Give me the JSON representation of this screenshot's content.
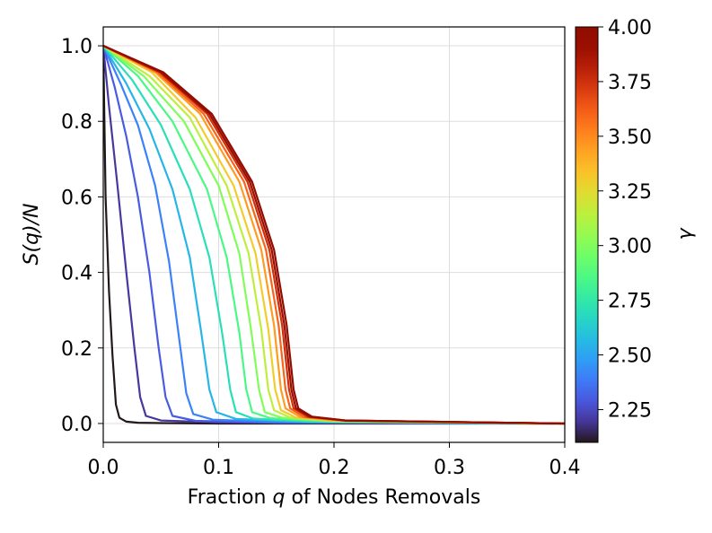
{
  "chart_data": {
    "type": "line",
    "xlabel_prefix": "Fraction ",
    "xlabel_var": "q",
    "xlabel_suffix": " of Nodes Removals",
    "ylabel": "S(q)/N",
    "xlim": [
      0,
      0.4
    ],
    "ylim": [
      -0.05,
      1.05
    ],
    "xticks": [
      0.0,
      0.1,
      0.2,
      0.3,
      0.4
    ],
    "xtick_labels": [
      "0.0",
      "0.1",
      "0.2",
      "0.3",
      "0.4"
    ],
    "yticks": [
      0.0,
      0.2,
      0.4,
      0.6,
      0.8,
      1.0
    ],
    "ytick_labels": [
      "0.0",
      "0.2",
      "0.4",
      "0.6",
      "0.8",
      "1.0"
    ],
    "grid": true,
    "colorbar": {
      "label": "γ",
      "range": [
        2.1,
        4.0
      ],
      "ticks": [
        2.25,
        2.5,
        2.75,
        3.0,
        3.25,
        3.5,
        3.75,
        4.0
      ],
      "tick_labels": [
        "2.25",
        "2.50",
        "2.75",
        "3.00",
        "3.25",
        "3.50",
        "3.75",
        "4.00"
      ],
      "colormap": "turbo"
    },
    "series": [
      {
        "gamma": 2.1,
        "x": [
          0,
          0.002,
          0.005,
          0.008,
          0.011,
          0.014,
          0.02,
          0.03,
          0.05,
          0.1,
          0.2,
          0.4
        ],
        "y": [
          1.0,
          0.6,
          0.35,
          0.18,
          0.05,
          0.015,
          0.005,
          0.002,
          0.001,
          0.0,
          0.0,
          0.0
        ]
      },
      {
        "gamma": 2.2,
        "x": [
          0,
          0.005,
          0.012,
          0.02,
          0.027,
          0.032,
          0.037,
          0.05,
          0.1,
          0.2,
          0.4
        ],
        "y": [
          1.0,
          0.84,
          0.64,
          0.4,
          0.2,
          0.07,
          0.02,
          0.008,
          0.003,
          0.001,
          0.0
        ]
      },
      {
        "gamma": 2.3,
        "x": [
          0,
          0.01,
          0.02,
          0.03,
          0.04,
          0.048,
          0.054,
          0.06,
          0.08,
          0.15,
          0.4
        ],
        "y": [
          1.0,
          0.89,
          0.76,
          0.6,
          0.4,
          0.2,
          0.07,
          0.02,
          0.007,
          0.002,
          0.0
        ]
      },
      {
        "gamma": 2.4,
        "x": [
          0,
          0.015,
          0.03,
          0.045,
          0.057,
          0.066,
          0.072,
          0.078,
          0.095,
          0.15,
          0.4
        ],
        "y": [
          1.0,
          0.9,
          0.79,
          0.63,
          0.43,
          0.22,
          0.08,
          0.025,
          0.01,
          0.004,
          0.0
        ]
      },
      {
        "gamma": 2.55,
        "x": [
          0,
          0.02,
          0.04,
          0.06,
          0.075,
          0.085,
          0.092,
          0.098,
          0.115,
          0.18,
          0.4
        ],
        "y": [
          1.0,
          0.9,
          0.78,
          0.62,
          0.44,
          0.24,
          0.09,
          0.03,
          0.012,
          0.004,
          0.0
        ]
      },
      {
        "gamma": 2.7,
        "x": [
          0,
          0.025,
          0.05,
          0.075,
          0.092,
          0.103,
          0.11,
          0.115,
          0.13,
          0.18,
          0.4
        ],
        "y": [
          1.0,
          0.91,
          0.79,
          0.62,
          0.44,
          0.24,
          0.09,
          0.03,
          0.013,
          0.005,
          0.0
        ]
      },
      {
        "gamma": 2.85,
        "x": [
          0,
          0.03,
          0.06,
          0.09,
          0.107,
          0.118,
          0.124,
          0.129,
          0.145,
          0.2,
          0.4
        ],
        "y": [
          1.0,
          0.92,
          0.8,
          0.62,
          0.44,
          0.24,
          0.09,
          0.03,
          0.014,
          0.005,
          0.0
        ]
      },
      {
        "gamma": 3.0,
        "x": [
          0,
          0.035,
          0.07,
          0.1,
          0.118,
          0.128,
          0.135,
          0.14,
          0.155,
          0.2,
          0.4
        ],
        "y": [
          1.0,
          0.92,
          0.8,
          0.63,
          0.45,
          0.25,
          0.09,
          0.03,
          0.015,
          0.006,
          0.0
        ]
      },
      {
        "gamma": 3.15,
        "x": [
          0,
          0.04,
          0.075,
          0.107,
          0.126,
          0.137,
          0.143,
          0.148,
          0.162,
          0.2,
          0.4
        ],
        "y": [
          1.0,
          0.92,
          0.81,
          0.63,
          0.45,
          0.25,
          0.09,
          0.035,
          0.016,
          0.007,
          0.0
        ]
      },
      {
        "gamma": 3.3,
        "x": [
          0,
          0.042,
          0.08,
          0.113,
          0.132,
          0.143,
          0.149,
          0.154,
          0.167,
          0.2,
          0.4
        ],
        "y": [
          1.0,
          0.93,
          0.81,
          0.63,
          0.45,
          0.25,
          0.09,
          0.035,
          0.016,
          0.007,
          0.0
        ]
      },
      {
        "gamma": 3.45,
        "x": [
          0,
          0.045,
          0.084,
          0.118,
          0.137,
          0.148,
          0.154,
          0.158,
          0.171,
          0.21,
          0.4
        ],
        "y": [
          1.0,
          0.93,
          0.82,
          0.64,
          0.46,
          0.26,
          0.09,
          0.04,
          0.017,
          0.007,
          0.0
        ]
      },
      {
        "gamma": 3.6,
        "x": [
          0,
          0.047,
          0.087,
          0.122,
          0.141,
          0.152,
          0.158,
          0.162,
          0.174,
          0.21,
          0.4
        ],
        "y": [
          1.0,
          0.93,
          0.82,
          0.64,
          0.46,
          0.26,
          0.09,
          0.04,
          0.017,
          0.007,
          0.0
        ]
      },
      {
        "gamma": 3.75,
        "x": [
          0,
          0.049,
          0.09,
          0.125,
          0.144,
          0.155,
          0.161,
          0.165,
          0.177,
          0.21,
          0.4
        ],
        "y": [
          1.0,
          0.93,
          0.82,
          0.64,
          0.46,
          0.26,
          0.09,
          0.04,
          0.018,
          0.008,
          0.0
        ]
      },
      {
        "gamma": 3.9,
        "x": [
          0,
          0.05,
          0.092,
          0.127,
          0.146,
          0.157,
          0.163,
          0.167,
          0.179,
          0.21,
          0.4
        ],
        "y": [
          1.0,
          0.93,
          0.82,
          0.64,
          0.46,
          0.26,
          0.09,
          0.04,
          0.018,
          0.008,
          0.0
        ]
      },
      {
        "gamma": 4.0,
        "x": [
          0,
          0.052,
          0.094,
          0.129,
          0.148,
          0.159,
          0.165,
          0.169,
          0.181,
          0.21,
          0.4
        ],
        "y": [
          1.0,
          0.93,
          0.82,
          0.64,
          0.46,
          0.26,
          0.09,
          0.04,
          0.018,
          0.008,
          0.0
        ]
      }
    ]
  }
}
